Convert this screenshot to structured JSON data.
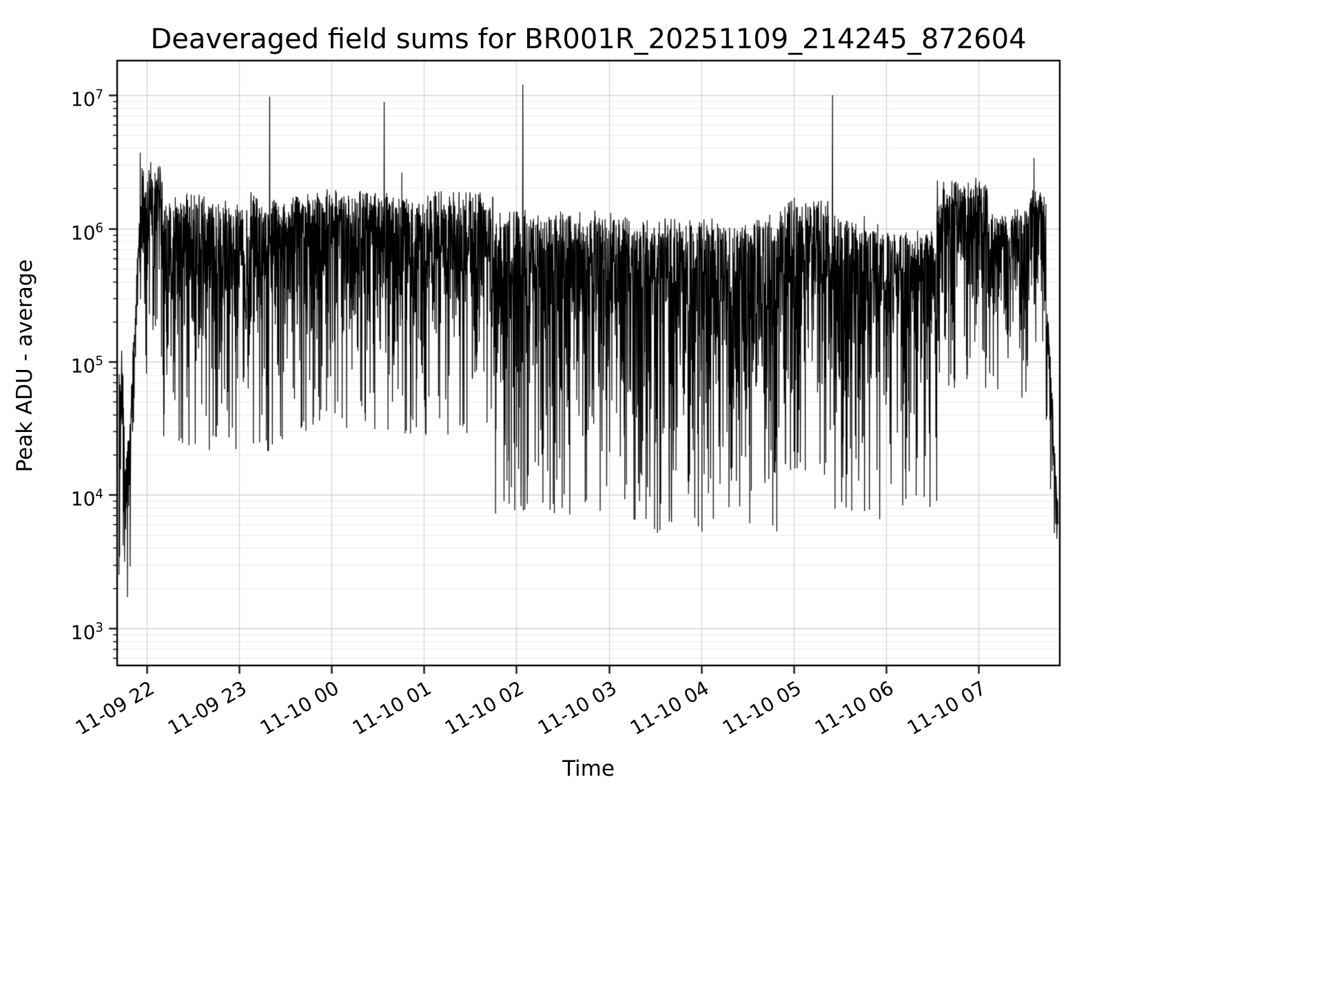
{
  "chart_data": {
    "type": "line",
    "title": "Deaveraged field sums for BR001R_20251109_214245_872604",
    "xlabel": "Time",
    "ylabel": "Peak ADU - average",
    "line_color": "#000000",
    "background_color": "#ffffff",
    "grid": true,
    "grid_major_color": "#d4d4d4",
    "grid_minor_color": "#ebebeb",
    "yscale": "log",
    "ylim_log10": [
      2.72,
      7.26
    ],
    "xlim_hours": [
      21.68,
      31.88
    ],
    "y_ticks": [
      {
        "exponent": 3,
        "label_base": "10"
      },
      {
        "exponent": 4,
        "label_base": "10"
      },
      {
        "exponent": 5,
        "label_base": "10"
      },
      {
        "exponent": 6,
        "label_base": "10"
      },
      {
        "exponent": 7,
        "label_base": "10"
      }
    ],
    "x_ticks": [
      {
        "t": 22.0,
        "label": "11-09 22"
      },
      {
        "t": 23.0,
        "label": "11-09 23"
      },
      {
        "t": 24.0,
        "label": "11-10 00"
      },
      {
        "t": 25.0,
        "label": "11-10 01"
      },
      {
        "t": 26.0,
        "label": "11-10 02"
      },
      {
        "t": 27.0,
        "label": "11-10 03"
      },
      {
        "t": 28.0,
        "label": "11-10 04"
      },
      {
        "t": 29.0,
        "label": "11-10 05"
      },
      {
        "t": 30.0,
        "label": "11-10 06"
      },
      {
        "t": 31.0,
        "label": "11-10 07"
      }
    ],
    "series_envelope": {
      "note": "Noisy time series summarized as segments: t0/t1 in decimal hours (22 = Nov 09 22:00, 31 = Nov 10 07:00); top/top1 = log10 of upper envelope; depth = typical log10 downward excursion.",
      "segments": [
        {
          "t0": 21.7,
          "t1": 21.76,
          "top": 5.05,
          "depth": 1.2
        },
        {
          "t0": 21.76,
          "t1": 21.83,
          "top": 4.2,
          "top1": 4.6,
          "depth": 0.7
        },
        {
          "t0": 21.83,
          "t1": 21.95,
          "top": 4.8,
          "top1": 6.5,
          "depth": 0.35
        },
        {
          "t0": 21.95,
          "t1": 22.18,
          "top": 6.45,
          "depth": 0.9
        },
        {
          "t0": 22.18,
          "t1": 23.6,
          "top": 6.22,
          "depth": 1.05
        },
        {
          "t0": 23.6,
          "t1": 25.75,
          "top": 6.25,
          "depth": 1.0
        },
        {
          "t0": 25.75,
          "t1": 27.2,
          "top": 6.1,
          "depth": 1.25
        },
        {
          "t0": 27.2,
          "t1": 28.85,
          "top": 6.05,
          "depth": 1.3
        },
        {
          "t0": 28.85,
          "t1": 29.4,
          "top": 6.2,
          "depth": 1.15
        },
        {
          "t0": 29.4,
          "t1": 29.95,
          "top": 6.05,
          "depth": 1.25
        },
        {
          "t0": 29.95,
          "t1": 30.55,
          "top": 5.95,
          "depth": 1.15
        },
        {
          "t0": 30.55,
          "t1": 31.1,
          "top": 6.35,
          "depth": 0.85
        },
        {
          "t0": 31.1,
          "t1": 31.55,
          "top": 6.1,
          "depth": 0.75
        },
        {
          "t0": 31.55,
          "t1": 31.73,
          "top": 6.25,
          "depth": 0.6
        },
        {
          "t0": 31.73,
          "t1": 31.86,
          "top": 5.6,
          "top1": 4.0,
          "depth": 0.55
        }
      ],
      "spikes": [
        {
          "t": 21.93,
          "v_log10": 6.57
        },
        {
          "t": 23.33,
          "v_log10": 6.99
        },
        {
          "t": 24.57,
          "v_log10": 6.95
        },
        {
          "t": 24.76,
          "v_log10": 6.42
        },
        {
          "t": 26.07,
          "v_log10": 7.08
        },
        {
          "t": 29.42,
          "v_log10": 7.0
        },
        {
          "t": 31.6,
          "v_log10": 6.53
        }
      ],
      "start_value_log10": 3.4,
      "end_value_log10": 3.78
    }
  }
}
